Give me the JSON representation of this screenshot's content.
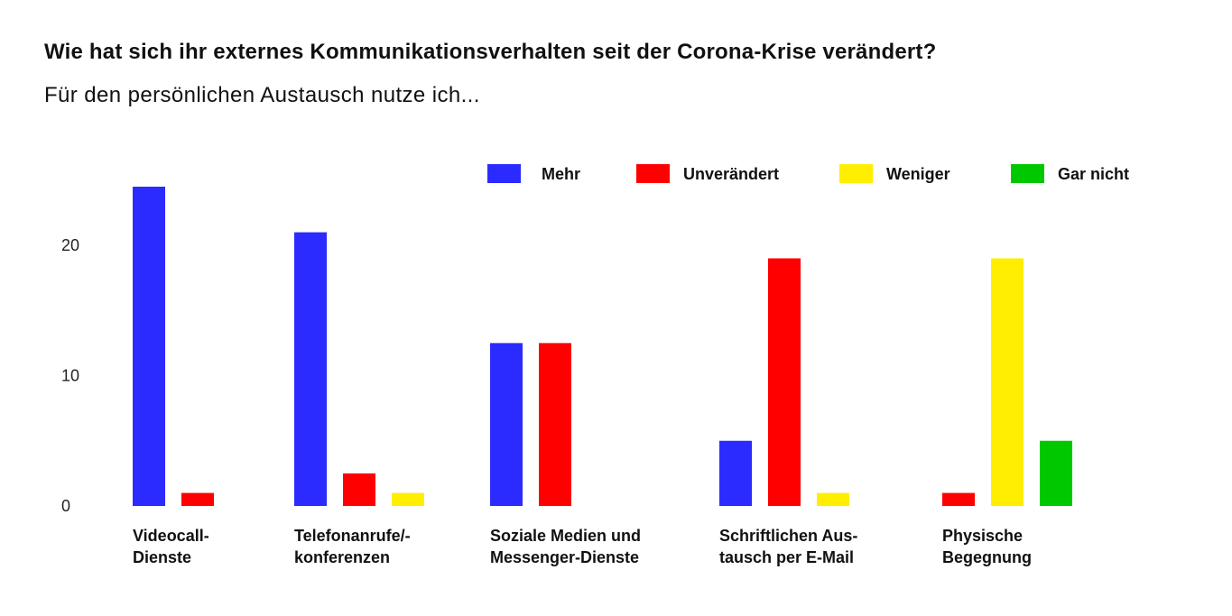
{
  "title": "Wie hat sich ihr externes Kommunikationsverhalten seit der Corona-Krise verändert?",
  "subtitle": "Für den persönlichen Austausch nutze ich...",
  "chart_data": {
    "type": "bar",
    "title": "Wie hat sich ihr externes Kommunikationsverhalten seit der Corona-Krise verändert?",
    "subtitle": "Für den persönlichen Austausch nutze ich...",
    "xlabel": "",
    "ylabel": "",
    "ylim": [
      0,
      25
    ],
    "yticks": [
      0,
      10,
      20
    ],
    "grid": false,
    "legend_position": "top-right",
    "categories": [
      [
        "Videocall-",
        "Dienste"
      ],
      [
        "Telefonanrufe/-",
        "konferenzen"
      ],
      [
        "Soziale Medien und",
        "Messenger-Dienste"
      ],
      [
        "Schriftlichen Aus-",
        "tausch per E-Mail"
      ],
      [
        "Physische",
        "Begegnung"
      ]
    ],
    "series": [
      {
        "name": "Mehr",
        "color": "#2b2bff",
        "values": [
          24.5,
          21,
          12.5,
          5,
          0
        ]
      },
      {
        "name": "Unverändert",
        "color": "#ff0000",
        "values": [
          1,
          2.5,
          12.5,
          19,
          1
        ]
      },
      {
        "name": "Weniger",
        "color": "#ffee00",
        "values": [
          0,
          1,
          0,
          1,
          19
        ]
      },
      {
        "name": "Gar nicht",
        "color": "#00c800",
        "values": [
          0,
          0,
          0,
          0,
          5
        ]
      }
    ]
  }
}
